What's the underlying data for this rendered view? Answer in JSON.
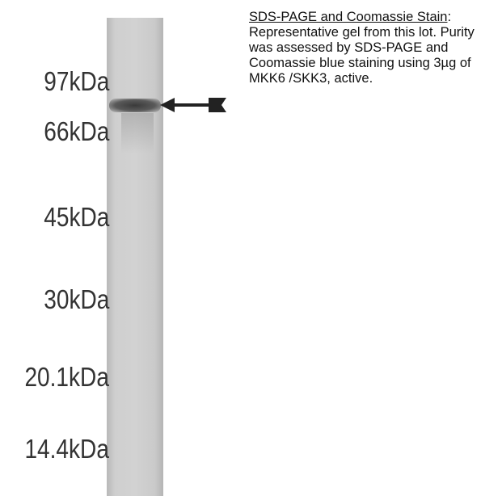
{
  "markers": [
    "97kDa",
    "66kDa",
    "45kDa",
    "30kDa",
    "20.1kDa",
    "14.4kDa"
  ],
  "caption": {
    "title": "SDS-PAGE and Coomassie Stain",
    "body": ": Representative gel from this lot.  Purity was assessed by SDS-PAGE and Coomassie blue staining using 3µg of MKK6 /SKK3, active."
  }
}
